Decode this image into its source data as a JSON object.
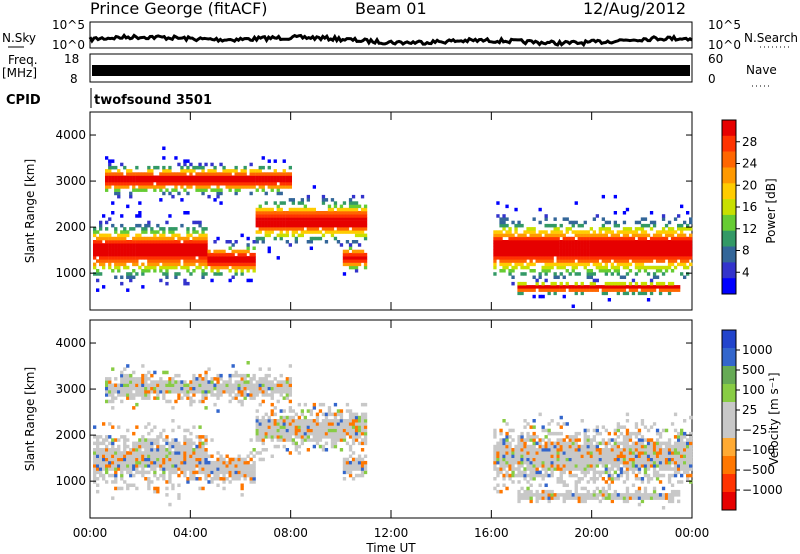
{
  "header": {
    "station": "Prince George (fitACF)",
    "beam": "Beam 01",
    "date": "12/Aug/2012"
  },
  "strips": {
    "nsky_label": "N.Sky",
    "nsky_ticks": [
      "10^5",
      "10^0"
    ],
    "nsearch_label": "N.Search",
    "nsearch_ticks": [
      "10^5",
      "10^0"
    ],
    "freq_label_top": "Freq.",
    "freq_label_unit": "[MHz]",
    "freq_ticks": [
      "18",
      "8"
    ],
    "nave_label": "Nave",
    "nave_ticks": [
      "60",
      "0"
    ],
    "cpid_label": "CPID",
    "cpid_value": "twofsound 3501"
  },
  "chart_data": [
    {
      "type": "heatmap",
      "name": "power-panel",
      "ylabel": "Slant Range [km]",
      "yticks": [
        1000,
        2000,
        3000,
        4000
      ],
      "ylim": [
        200,
        4500
      ],
      "colorbar_label": "Power [dB]",
      "colorbar_ticks": [
        "28",
        "24",
        "20",
        "16",
        "12",
        "8",
        "4"
      ],
      "colorbar_colors": [
        "#e60000",
        "#ff3300",
        "#ff6600",
        "#ff9900",
        "#ffcc00",
        "#c8e000",
        "#66cc33",
        "#339966",
        "#336699",
        "#3333cc",
        "#0000ff"
      ],
      "bands": [
        {
          "t0": 0.0,
          "t1": 4.5,
          "r0": 900,
          "r1": 2300,
          "level": "high"
        },
        {
          "t0": 4.5,
          "t1": 7.0,
          "r0": 1100,
          "r1": 1900,
          "level": "mid"
        },
        {
          "t0": 7.0,
          "t1": 11.0,
          "r0": 1700,
          "r1": 2700,
          "level": "mid"
        },
        {
          "t0": 16.0,
          "t1": 24.0,
          "r0": 800,
          "r1": 2300,
          "level": "high"
        }
      ]
    },
    {
      "type": "heatmap",
      "name": "velocity-panel",
      "ylabel": "Slant Range [km]",
      "yticks": [
        1000,
        2000,
        3000,
        4000
      ],
      "ylim": [
        200,
        4500
      ],
      "colorbar_label": "Velocity [m s⁻¹]",
      "colorbar_ticks": [
        "1000",
        "500",
        "100",
        "25",
        "−25",
        "−100",
        "−500",
        "−1000"
      ],
      "colorbar_colors": [
        "#2244cc",
        "#3366cc",
        "#66aa55",
        "#88cc44",
        "#c8c8c8",
        "#c8c8c8",
        "#ffaa33",
        "#ff7700",
        "#ff3300",
        "#e60000"
      ]
    }
  ],
  "xaxis": {
    "label": "Time UT",
    "ticks": [
      "00:00",
      "04:00",
      "08:00",
      "12:00",
      "16:00",
      "20:00",
      "00:00"
    ],
    "range_hours": [
      0,
      24
    ]
  }
}
